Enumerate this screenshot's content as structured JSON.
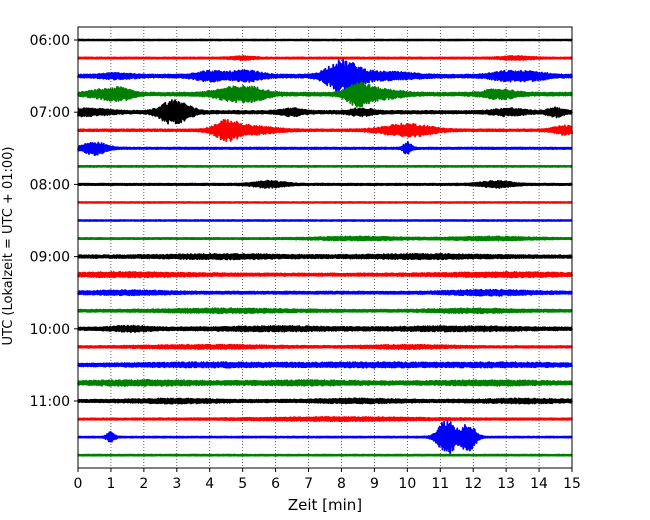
{
  "chart_data": {
    "type": "line",
    "title": "",
    "xlabel": "Zeit  [min]",
    "ylabel": "UTC (Lokalzeit = UTC + 01:00)",
    "xlim": [
      0,
      15
    ],
    "xticks": [
      "0",
      "1",
      "2",
      "3",
      "4",
      "5",
      "6",
      "7",
      "8",
      "9",
      "10",
      "11",
      "12",
      "13",
      "14",
      "15"
    ],
    "yticks": [
      {
        "label": "06:00",
        "trace": 0
      },
      {
        "label": "07:00",
        "trace": 4
      },
      {
        "label": "08:00",
        "trace": 8
      },
      {
        "label": "09:00",
        "trace": 12
      },
      {
        "label": "10:00",
        "trace": 16
      },
      {
        "label": "11:00",
        "trace": 20
      }
    ],
    "grid": "vertical dotted",
    "trace_interval_minutes": 15,
    "trace_colors": [
      "#000000",
      "#ff0000",
      "#0000ff",
      "#008000"
    ],
    "traces": [
      {
        "base": 0.5,
        "events": []
      },
      {
        "base": 0.7,
        "events": [
          [
            5.0,
            0.3,
            1.4
          ],
          [
            13.3,
            0.4,
            1.5
          ]
        ]
      },
      {
        "base": 1.6,
        "events": [
          [
            4.0,
            0.4,
            4.0
          ],
          [
            5.1,
            0.4,
            4.5
          ],
          [
            7.9,
            0.35,
            10
          ],
          [
            8.3,
            0.4,
            7
          ],
          [
            9.5,
            0.6,
            3
          ],
          [
            13.0,
            0.4,
            3.5
          ],
          [
            13.8,
            0.4,
            3
          ],
          [
            1.2,
            0.4,
            2
          ]
        ]
      },
      {
        "base": 1.6,
        "events": [
          [
            0.7,
            0.35,
            3
          ],
          [
            1.3,
            0.3,
            5
          ],
          [
            4.7,
            0.5,
            5
          ],
          [
            5.3,
            0.4,
            4
          ],
          [
            8.5,
            0.3,
            10
          ],
          [
            9.2,
            0.5,
            4
          ],
          [
            12.8,
            0.4,
            4
          ]
        ]
      },
      {
        "base": 1.4,
        "events": [
          [
            0.2,
            0.6,
            3
          ],
          [
            2.8,
            0.3,
            9
          ],
          [
            3.2,
            0.3,
            5
          ],
          [
            6.5,
            0.3,
            3
          ],
          [
            8.6,
            0.3,
            3
          ],
          [
            13.1,
            0.4,
            3
          ],
          [
            14.5,
            0.2,
            4
          ]
        ]
      },
      {
        "base": 1.0,
        "events": [
          [
            4.5,
            0.3,
            8
          ],
          [
            5.2,
            0.6,
            4
          ],
          [
            10.0,
            0.6,
            6
          ],
          [
            14.8,
            0.3,
            4
          ]
        ]
      },
      {
        "base": 0.8,
        "events": [
          [
            0.5,
            0.3,
            6
          ],
          [
            10.0,
            0.1,
            6
          ]
        ]
      },
      {
        "base": 0.6,
        "events": []
      },
      {
        "base": 0.8,
        "events": [
          [
            5.8,
            0.4,
            3
          ],
          [
            12.7,
            0.4,
            3
          ]
        ]
      },
      {
        "base": 0.5,
        "events": []
      },
      {
        "base": 0.5,
        "events": []
      },
      {
        "base": 0.7,
        "events": [
          [
            8.5,
            1.0,
            1.5
          ],
          [
            12.5,
            1.0,
            1.5
          ]
        ]
      },
      {
        "base": 1.4,
        "events": [
          [
            4.5,
            1.5,
            1.5
          ],
          [
            10.5,
            1.5,
            1.5
          ]
        ]
      },
      {
        "base": 1.3,
        "events": [
          [
            1.5,
            1.5,
            1.5
          ],
          [
            13.0,
            1.5,
            1.5
          ]
        ]
      },
      {
        "base": 1.2,
        "events": [
          [
            1.5,
            1.0,
            1.5
          ],
          [
            12.5,
            1.0,
            2
          ]
        ]
      },
      {
        "base": 1.1,
        "events": [
          [
            4.5,
            1.5,
            1.5
          ],
          [
            12.0,
            1.0,
            1.5
          ]
        ]
      },
      {
        "base": 1.4,
        "events": [
          [
            1.6,
            0.5,
            2
          ],
          [
            6.0,
            1.5,
            1.5
          ],
          [
            11.5,
            1.5,
            1.5
          ]
        ]
      },
      {
        "base": 0.9,
        "events": [
          [
            4.0,
            1.5,
            1.4
          ],
          [
            10.0,
            1.0,
            1.4
          ]
        ]
      },
      {
        "base": 1.3,
        "events": [
          [
            4.0,
            2.0,
            1.5
          ],
          [
            9.0,
            1.5,
            1.5
          ],
          [
            13.0,
            1.5,
            1.5
          ]
        ]
      },
      {
        "base": 1.4,
        "events": [
          [
            2.0,
            1.5,
            1.8
          ],
          [
            7.0,
            1.5,
            1.5
          ],
          [
            12.5,
            1.5,
            1.5
          ]
        ]
      },
      {
        "base": 1.3,
        "events": [
          [
            3.0,
            1.0,
            1.4
          ],
          [
            8.5,
            1.0,
            1.4
          ],
          [
            13.5,
            1.0,
            1.4
          ]
        ]
      },
      {
        "base": 0.8,
        "events": [
          [
            8.0,
            2.0,
            1.4
          ]
        ]
      },
      {
        "base": 0.6,
        "events": [
          [
            1.0,
            0.1,
            5
          ],
          [
            11.2,
            0.22,
            18
          ],
          [
            11.85,
            0.18,
            14
          ]
        ]
      },
      {
        "base": 0.6,
        "events": []
      }
    ]
  }
}
